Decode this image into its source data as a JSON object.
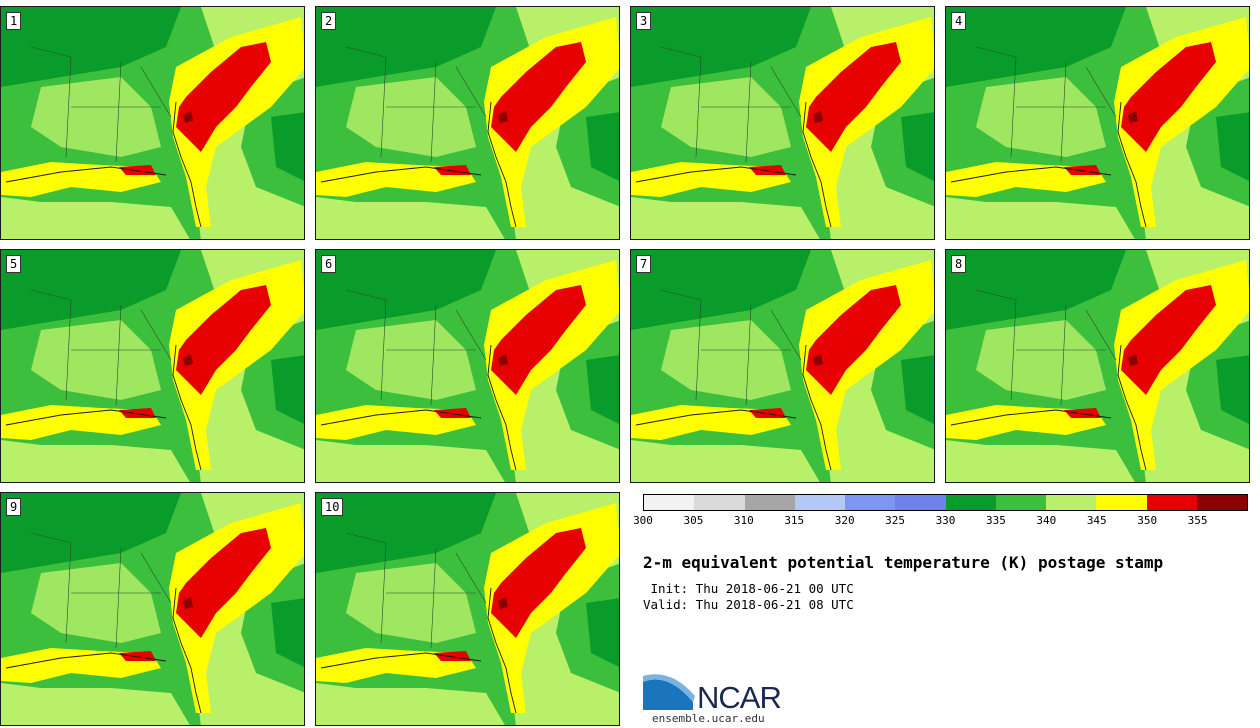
{
  "title": "2-m equivalent potential temperature (K) postage stamp",
  "init": " Init: Thu 2018-06-21 00 UTC",
  "valid": "Valid: Thu 2018-06-21 08 UTC",
  "members": [
    "1",
    "2",
    "3",
    "4",
    "5",
    "6",
    "7",
    "8",
    "9",
    "10"
  ],
  "colorbar": {
    "ticks": [
      "300",
      "305",
      "310",
      "315",
      "320",
      "325",
      "330",
      "335",
      "340",
      "345",
      "350",
      "355"
    ],
    "colors": [
      "#f2f2f2",
      "#dadada",
      "#a6a6a6",
      "#b4c8f8",
      "#7c96f2",
      "#6e82ee",
      "#0a9c2a",
      "#3cbf3c",
      "#b8f06a",
      "#ffff00",
      "#e60000",
      "#8b0000"
    ]
  },
  "logo": {
    "name": "NCAR",
    "url": "ensemble.ucar.edu"
  }
}
